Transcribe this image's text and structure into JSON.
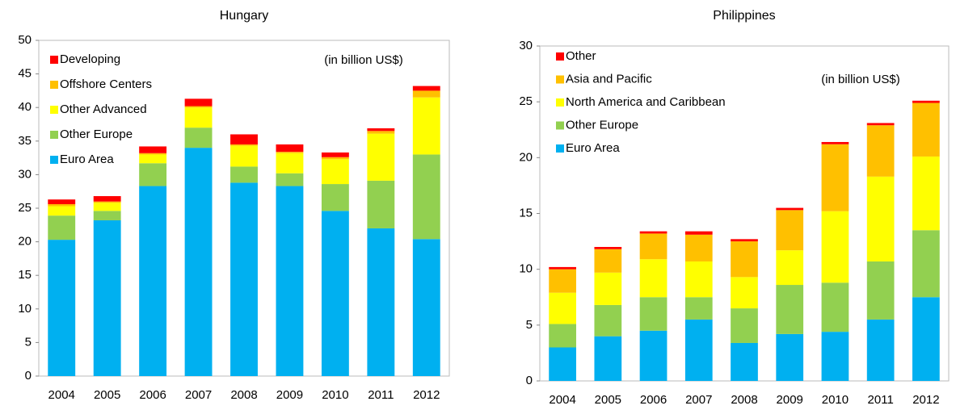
{
  "chart_data": [
    {
      "type": "bar",
      "stacked": true,
      "title": "Hungary",
      "annotation": "(in billion US$)",
      "categories": [
        "2004",
        "2005",
        "2006",
        "2007",
        "2008",
        "2009",
        "2010",
        "2011",
        "2012"
      ],
      "series": [
        {
          "name": "Euro Area",
          "color": "#00b0f0",
          "values": [
            20.3,
            23.2,
            28.3,
            34,
            28.8,
            28.3,
            24.6,
            22,
            20.4
          ]
        },
        {
          "name": "Other Europe",
          "color": "#92d050",
          "values": [
            3.6,
            1.4,
            3.4,
            3,
            2.4,
            1.9,
            4,
            7.1,
            12.6
          ]
        },
        {
          "name": "Other Advanced",
          "color": "#ffff00",
          "values": [
            1.4,
            1.2,
            1.3,
            3,
            3.1,
            3,
            3.7,
            7,
            8.5
          ]
        },
        {
          "name": "Offshore Centers",
          "color": "#ffc000",
          "values": [
            0.3,
            0.2,
            0.2,
            0.2,
            0.2,
            0.2,
            0.3,
            0.4,
            1
          ]
        },
        {
          "name": "Developing",
          "color": "#ff0000",
          "values": [
            0.7,
            0.8,
            1,
            1.1,
            1.5,
            1.1,
            0.7,
            0.4,
            0.7
          ]
        }
      ],
      "ylim": [
        0,
        50
      ],
      "yticks": [
        0,
        5,
        10,
        15,
        20,
        25,
        30,
        35,
        40,
        45,
        50
      ],
      "legend": "upper left",
      "grid": false
    },
    {
      "type": "bar",
      "stacked": true,
      "title": "Philippines",
      "annotation": "(in billion US$)",
      "categories": [
        "2004",
        "2005",
        "2006",
        "2007",
        "2008",
        "2009",
        "2010",
        "2011",
        "2012"
      ],
      "series": [
        {
          "name": "Euro Area",
          "color": "#00b0f0",
          "values": [
            3,
            4,
            4.5,
            5.5,
            3.4,
            4.2,
            4.4,
            5.5,
            7.5
          ]
        },
        {
          "name": "Other Europe",
          "color": "#92d050",
          "values": [
            2.1,
            2.8,
            3,
            2,
            3.1,
            4.4,
            4.4,
            5.2,
            6
          ]
        },
        {
          "name": "North America and Caribbean",
          "color": "#ffff00",
          "values": [
            2.8,
            2.9,
            3.4,
            3.2,
            2.8,
            3.1,
            6.4,
            7.6,
            6.6
          ]
        },
        {
          "name": "Asia and Pacific",
          "color": "#ffc000",
          "values": [
            2.1,
            2.1,
            2.3,
            2.4,
            3.2,
            3.6,
            6,
            4.6,
            4.8
          ]
        },
        {
          "name": "Other",
          "color": "#ff0000",
          "values": [
            0.2,
            0.2,
            0.2,
            0.3,
            0.2,
            0.2,
            0.2,
            0.2,
            0.2
          ]
        }
      ],
      "ylim": [
        0,
        30
      ],
      "yticks": [
        0,
        5,
        10,
        15,
        20,
        25,
        30
      ],
      "legend": "upper left",
      "grid": false
    }
  ]
}
